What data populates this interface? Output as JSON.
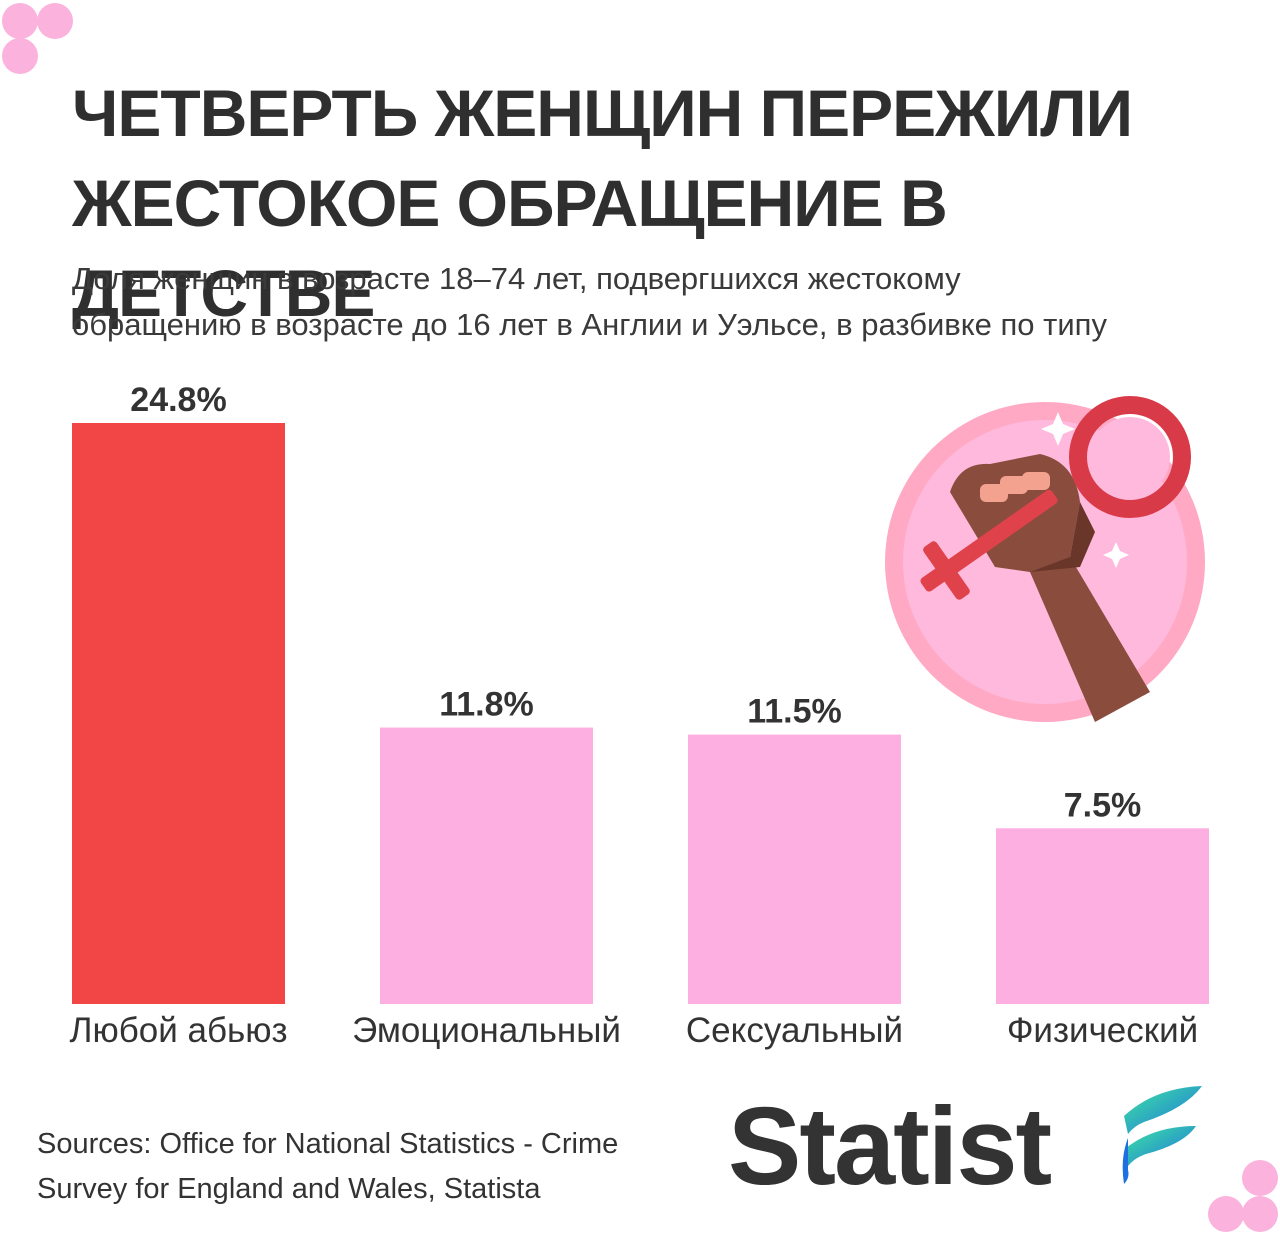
{
  "header": {
    "title_lines": [
      "ЧЕТВЕРТЬ ЖЕНЩИН ПЕРЕЖИЛИ",
      "ЖЕСТОКОЕ ОБРАЩЕНИЕ В ДЕТСТВЕ"
    ],
    "subtitle_lines": [
      "Доля женщин в возрасте 18–74 лет, подвергшихся жестокому",
      "обращению в возрасте до 16 лет в Англии и Уэльсе, в разбивке по типу"
    ]
  },
  "chart_data": {
    "type": "bar",
    "categories": [
      "Любой абьюз",
      "Эмоциональный",
      "Сексуальный",
      "Физический"
    ],
    "values": [
      24.8,
      11.8,
      11.5,
      7.5
    ],
    "value_labels": [
      "24.8%",
      "11.8%",
      "11.5%",
      "7.5%"
    ],
    "colors": [
      "#f24545",
      "#fdafe2",
      "#fdafe2",
      "#fdafe2"
    ],
    "ylim": [
      0,
      24.8
    ],
    "grid": false,
    "legend": "none"
  },
  "illustration": {
    "icon": "raised-fist-female-symbol-icon"
  },
  "footer": {
    "source_lines": [
      "Sources: Office for National Statistics - Crime",
      "Survey for England and Wales, Statista"
    ],
    "brand": "Statist",
    "brand_icon": "statista-logo-icon"
  },
  "colors": {
    "accent": "#f24545",
    "pink": "#fdafe2",
    "dots": "#fbb2dd",
    "text": "#333333"
  }
}
